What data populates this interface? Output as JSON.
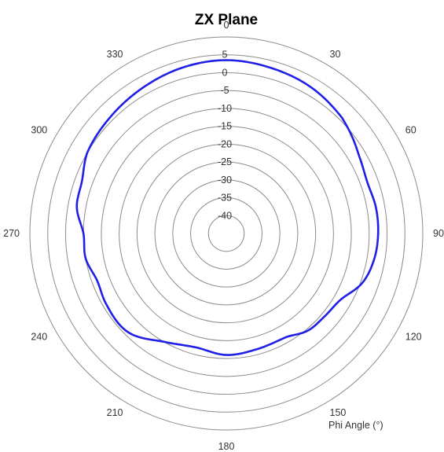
{
  "chart_data": {
    "type": "polar-line",
    "title": "ZX Plane",
    "angle_axis_label": "Phi Angle (°)",
    "angle_ticks": [
      "0",
      "30",
      "60",
      "90",
      "120",
      "150",
      "180",
      "210",
      "240",
      "270",
      "300",
      "330"
    ],
    "radial_ticks": [
      "5",
      "0",
      "-5",
      "-10",
      "-15",
      "-20",
      "-25",
      "-30",
      "-35",
      "-40"
    ],
    "rlim": [
      -45,
      10
    ],
    "grid": true,
    "direction": "clockwise",
    "zero_at": "top",
    "line_color": "#1f1fe6",
    "series": [
      {
        "angles": [
          0,
          15,
          30,
          45,
          52,
          60,
          70,
          80,
          90,
          100,
          110,
          120,
          130,
          140,
          150,
          165,
          180,
          195,
          210,
          225,
          240,
          250,
          260,
          270,
          280,
          290,
          300,
          315,
          330,
          345,
          360
        ],
        "values": [
          3.5,
          3,
          2.3,
          0.8,
          -0.5,
          -2,
          -3,
          -2.5,
          -2.5,
          -3,
          -4.5,
          -8,
          -9,
          -9.5,
          -11.5,
          -11.5,
          -11,
          -12,
          -10,
          -6,
          -6,
          -6.5,
          -5,
          -5,
          -2.5,
          -2,
          0,
          1,
          2,
          3,
          3.5
        ]
      }
    ]
  }
}
